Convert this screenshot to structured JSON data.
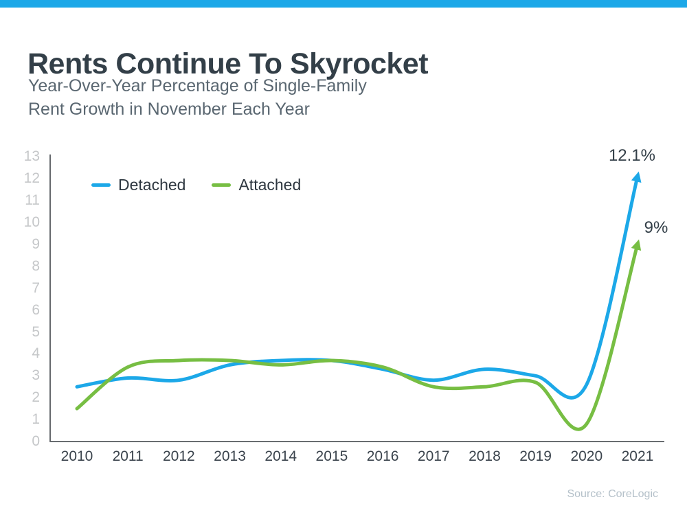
{
  "theme": {
    "accent_bar_color": "#1CA8E8",
    "title_color": "#333F48",
    "axis_color": "#54585C"
  },
  "header": {
    "title": "Rents Continue To Skyrocket",
    "subtitle_line1": "Year-Over-Year Percentage of Single-Family",
    "subtitle_line2": "Rent Growth in November Each Year"
  },
  "chart_data": {
    "type": "line",
    "title": "Rents Continue To Skyrocket",
    "subtitle": "Year-Over-Year Percentage of Single-Family Rent Growth in November Each Year",
    "x": [
      2010,
      2011,
      2012,
      2013,
      2014,
      2015,
      2016,
      2017,
      2018,
      2019,
      2020,
      2021
    ],
    "series": [
      {
        "name": "Detached",
        "color": "#1CA8E8",
        "values": [
          2.5,
          2.9,
          2.8,
          3.5,
          3.7,
          3.7,
          3.3,
          2.8,
          3.3,
          3.0,
          2.6,
          12.1
        ],
        "end_label": "12.1%"
      },
      {
        "name": "Attached",
        "color": "#77BE43",
        "values": [
          1.5,
          3.4,
          3.7,
          3.7,
          3.5,
          3.7,
          3.4,
          2.5,
          2.5,
          2.7,
          0.8,
          9.0
        ],
        "end_label": "9%"
      }
    ],
    "ylim": [
      0,
      13
    ],
    "yticks": [
      0,
      1,
      2,
      3,
      4,
      5,
      6,
      7,
      8,
      9,
      10,
      11,
      12,
      13
    ],
    "grid": false,
    "legend_position": "top-left",
    "source": "Source: CoreLogic"
  }
}
